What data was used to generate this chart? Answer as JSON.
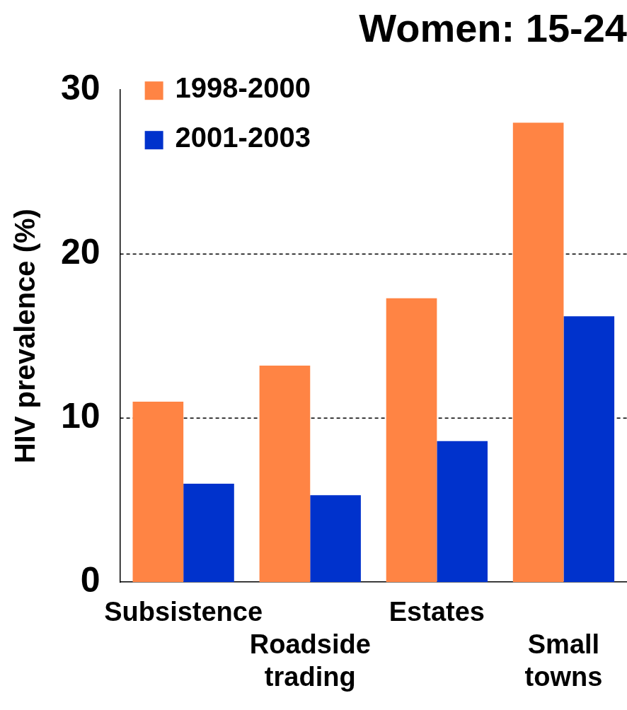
{
  "chart_data": {
    "type": "bar",
    "title": "Women: 15-24",
    "ylabel": "HIV prevalence (%)",
    "categories": [
      "Subsistence",
      "Roadside trading",
      "Estates",
      "Small towns"
    ],
    "series": [
      {
        "name": "1998-2000",
        "color": "#ff8444",
        "values": [
          11,
          13.2,
          17.3,
          28
        ]
      },
      {
        "name": "2001-2003",
        "color": "#0032cc",
        "values": [
          6,
          5.3,
          8.6,
          16.2
        ]
      }
    ],
    "ylim": [
      0,
      30
    ],
    "yticks": [
      0,
      10,
      20,
      30
    ],
    "grid": "y",
    "legend": "top left"
  }
}
